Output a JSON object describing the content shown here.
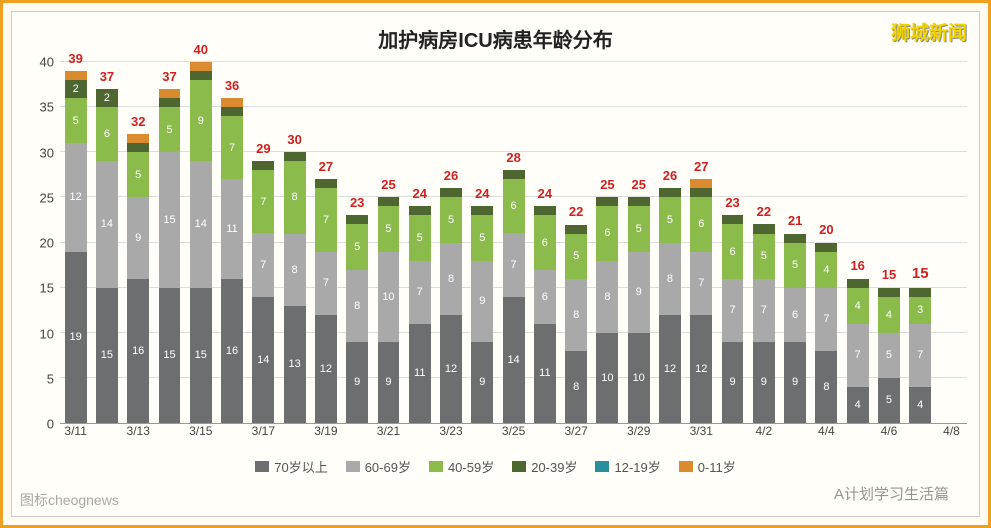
{
  "title": "加护病房ICU病患年龄分布",
  "title_fontsize": 20,
  "logo_text": "狮城新闻",
  "logo_fontsize": 19,
  "background_color": "#fffef8",
  "border_color": "#f0a020",
  "chart": {
    "type": "stacked-bar",
    "ylim": [
      0,
      40
    ],
    "ytick_step": 5,
    "yticks": [
      0,
      5,
      10,
      15,
      20,
      25,
      30,
      35,
      40
    ],
    "grid_color": "#dddddd",
    "total_label_color": "#d02020",
    "bar_width": 0.7,
    "segment_label_color": "#ffffff",
    "segment_label_fontsize": 11,
    "series": [
      {
        "name": "70岁以上",
        "color": "#6d6e70"
      },
      {
        "name": "60-69岁",
        "color": "#a9a9aa"
      },
      {
        "name": "40-59岁",
        "color": "#8bbb4b"
      },
      {
        "name": "20-39岁",
        "color": "#4e662f"
      },
      {
        "name": "12-19岁",
        "color": "#2b8e9c"
      },
      {
        "name": "0-11岁",
        "color": "#db8b2f"
      }
    ],
    "dates": [
      "3/11",
      "3/12",
      "3/13",
      "3/14",
      "3/15",
      "3/16",
      "3/17",
      "3/18",
      "3/19",
      "3/20",
      "3/21",
      "3/22",
      "3/23",
      "3/24",
      "3/25",
      "3/26",
      "3/27",
      "3/28",
      "3/29",
      "3/30",
      "3/31",
      "4/1",
      "4/2",
      "4/3",
      "4/4",
      "4/5",
      "4/6",
      "4/7",
      "4/8"
    ],
    "xtick_every": 2,
    "totals": [
      39,
      37,
      32,
      37,
      40,
      36,
      29,
      30,
      27,
      23,
      25,
      24,
      26,
      24,
      28,
      24,
      22,
      25,
      25,
      26,
      27,
      23,
      22,
      21,
      20,
      16,
      15,
      15,
      null
    ],
    "stacks": [
      [
        19,
        12,
        5,
        2,
        0,
        1
      ],
      [
        15,
        14,
        6,
        2,
        0,
        0
      ],
      [
        16,
        9,
        5,
        1,
        0,
        1
      ],
      [
        15,
        15,
        5,
        1,
        0,
        1
      ],
      [
        15,
        14,
        9,
        1,
        0,
        1
      ],
      [
        16,
        11,
        7,
        1,
        0,
        1
      ],
      [
        14,
        7,
        7,
        1,
        0,
        0
      ],
      [
        13,
        8,
        8,
        1,
        0,
        0
      ],
      [
        12,
        7,
        7,
        1,
        0,
        0
      ],
      [
        9,
        8,
        5,
        1,
        0,
        0
      ],
      [
        9,
        10,
        5,
        1,
        0,
        0
      ],
      [
        11,
        7,
        5,
        1,
        0,
        0
      ],
      [
        12,
        8,
        5,
        1,
        0,
        0
      ],
      [
        9,
        9,
        5,
        1,
        0,
        0
      ],
      [
        14,
        7,
        6,
        1,
        0,
        0
      ],
      [
        11,
        6,
        6,
        1,
        0,
        0
      ],
      [
        8,
        8,
        5,
        1,
        0,
        0
      ],
      [
        10,
        8,
        6,
        1,
        0,
        0
      ],
      [
        10,
        9,
        5,
        1,
        0,
        0
      ],
      [
        12,
        8,
        5,
        1,
        0,
        0
      ],
      [
        12,
        7,
        6,
        1,
        0,
        1
      ],
      [
        9,
        7,
        6,
        1,
        0,
        0
      ],
      [
        9,
        7,
        5,
        1,
        0,
        0
      ],
      [
        9,
        6,
        5,
        1,
        0,
        0
      ],
      [
        8,
        7,
        4,
        1,
        0,
        0
      ],
      [
        4,
        7,
        4,
        1,
        0,
        0
      ],
      [
        5,
        5,
        4,
        1,
        0,
        0
      ],
      [
        4,
        7,
        3,
        1,
        0,
        0
      ],
      null
    ]
  },
  "watermarks": {
    "bottom_left": "图标cheognews",
    "bottom_right": "A计划学习生活篇"
  }
}
